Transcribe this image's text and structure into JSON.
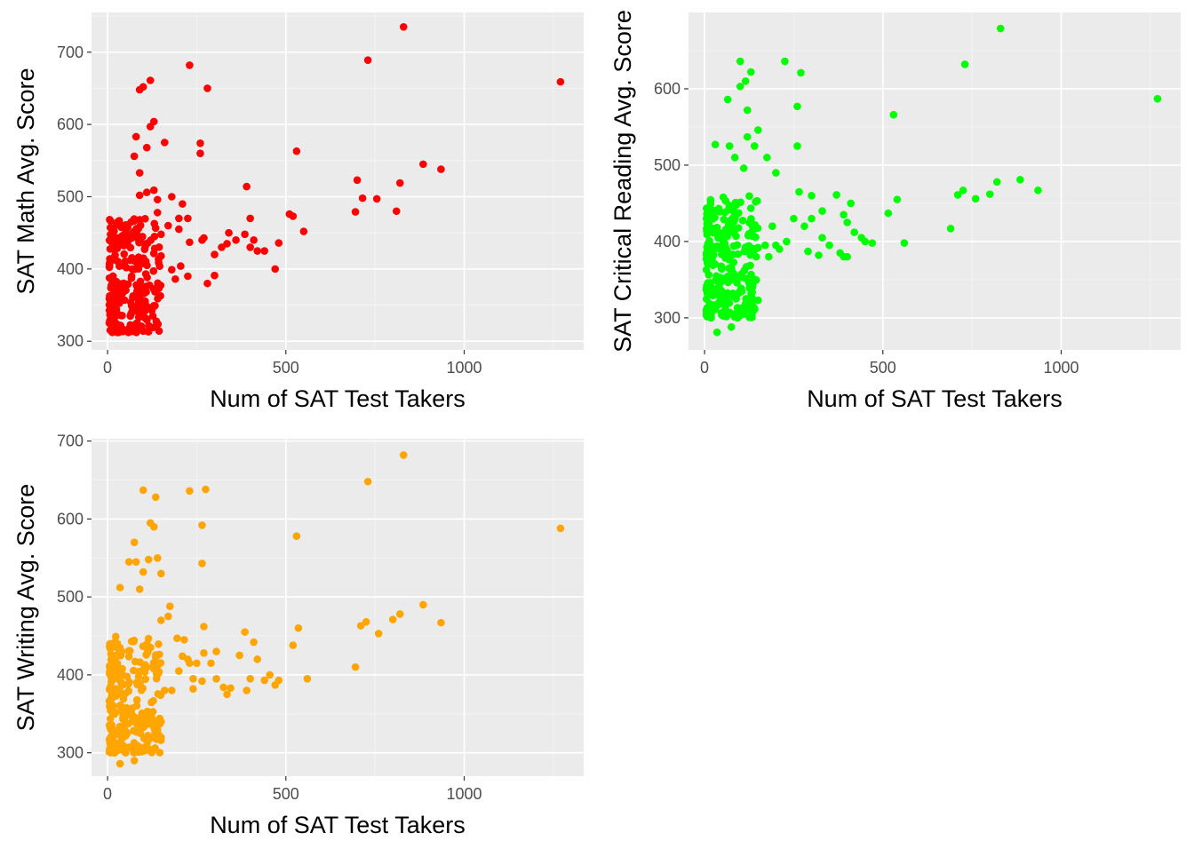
{
  "chart_data": [
    {
      "type": "scatter",
      "id": "math",
      "color": "#FF0000",
      "xlabel": "Num of SAT Test Takers",
      "ylabel": "SAT Math Avg. Score",
      "xlim": [
        -45,
        1335
      ],
      "ylim": [
        288,
        755
      ],
      "xticks": [
        0,
        500,
        1000
      ],
      "yticks": [
        300,
        400,
        500,
        600,
        700
      ],
      "grid": true,
      "cluster": {
        "xmin": 5,
        "xmax": 150,
        "ymin": 312,
        "ymax": 470,
        "count": 260
      },
      "points": [
        [
          1270,
          659
        ],
        [
          830,
          735
        ],
        [
          730,
          689
        ],
        [
          230,
          682
        ],
        [
          280,
          650
        ],
        [
          120,
          661
        ],
        [
          100,
          652
        ],
        [
          90,
          648
        ],
        [
          130,
          604
        ],
        [
          120,
          597
        ],
        [
          160,
          575
        ],
        [
          260,
          574
        ],
        [
          80,
          583
        ],
        [
          110,
          568
        ],
        [
          75,
          556
        ],
        [
          90,
          533
        ],
        [
          530,
          563
        ],
        [
          700,
          523
        ],
        [
          935,
          538
        ],
        [
          885,
          545
        ],
        [
          820,
          519
        ],
        [
          390,
          514
        ],
        [
          260,
          560
        ],
        [
          715,
          498
        ],
        [
          755,
          497
        ],
        [
          810,
          480
        ],
        [
          695,
          479
        ],
        [
          550,
          452
        ],
        [
          520,
          473
        ],
        [
          510,
          476
        ],
        [
          480,
          436
        ],
        [
          470,
          400
        ],
        [
          440,
          425
        ],
        [
          400,
          430
        ],
        [
          385,
          448
        ],
        [
          360,
          440
        ],
        [
          340,
          450
        ],
        [
          335,
          435
        ],
        [
          300,
          420
        ],
        [
          300,
          391
        ],
        [
          280,
          380
        ],
        [
          265,
          440
        ],
        [
          270,
          443
        ],
        [
          230,
          437
        ],
        [
          225,
          390
        ],
        [
          205,
          404
        ],
        [
          190,
          386
        ],
        [
          180,
          399
        ],
        [
          150,
          418
        ],
        [
          150,
          448
        ],
        [
          200,
          470
        ],
        [
          210,
          490
        ],
        [
          200,
          455
        ],
        [
          170,
          460
        ],
        [
          140,
          478
        ],
        [
          140,
          496
        ],
        [
          130,
          509
        ],
        [
          110,
          506
        ],
        [
          90,
          502
        ],
        [
          180,
          500
        ],
        [
          400,
          470
        ],
        [
          410,
          440
        ],
        [
          420,
          425
        ],
        [
          320,
          430
        ],
        [
          225,
          470
        ]
      ]
    },
    {
      "type": "scatter",
      "id": "reading",
      "color": "#00FF00",
      "xlabel": "Num of SAT Test Takers",
      "ylabel": "SAT Critical Reading Avg. Score",
      "xlim": [
        -45,
        1335
      ],
      "ylim": [
        258,
        700
      ],
      "xticks": [
        0,
        500,
        1000
      ],
      "yticks": [
        300,
        400,
        500,
        600
      ],
      "grid": true,
      "cluster": {
        "xmin": 5,
        "xmax": 150,
        "ymin": 300,
        "ymax": 460,
        "count": 260
      },
      "points": [
        [
          830,
          679
        ],
        [
          1270,
          587
        ],
        [
          730,
          632
        ],
        [
          225,
          636
        ],
        [
          270,
          621
        ],
        [
          100,
          636
        ],
        [
          130,
          622
        ],
        [
          115,
          610
        ],
        [
          100,
          603
        ],
        [
          260,
          577
        ],
        [
          530,
          566
        ],
        [
          120,
          572
        ],
        [
          65,
          586
        ],
        [
          150,
          546
        ],
        [
          140,
          525
        ],
        [
          260,
          525
        ],
        [
          30,
          527
        ],
        [
          70,
          525
        ],
        [
          85,
          510
        ],
        [
          110,
          496
        ],
        [
          120,
          537
        ],
        [
          175,
          510
        ],
        [
          200,
          490
        ],
        [
          265,
          465
        ],
        [
          370,
          461
        ],
        [
          390,
          435
        ],
        [
          400,
          425
        ],
        [
          410,
          450
        ],
        [
          330,
          440
        ],
        [
          300,
          430
        ],
        [
          290,
          387
        ],
        [
          320,
          382
        ],
        [
          350,
          395
        ],
        [
          380,
          385
        ],
        [
          390,
          380
        ],
        [
          400,
          380
        ],
        [
          420,
          412
        ],
        [
          440,
          405
        ],
        [
          470,
          398
        ],
        [
          450,
          400
        ],
        [
          515,
          437
        ],
        [
          540,
          455
        ],
        [
          560,
          398
        ],
        [
          690,
          417
        ],
        [
          710,
          461
        ],
        [
          725,
          467
        ],
        [
          760,
          456
        ],
        [
          800,
          462
        ],
        [
          820,
          478
        ],
        [
          885,
          481
        ],
        [
          935,
          467
        ],
        [
          280,
          420
        ],
        [
          250,
          430
        ],
        [
          230,
          400
        ],
        [
          210,
          390
        ],
        [
          200,
          395
        ],
        [
          180,
          380
        ],
        [
          170,
          395
        ],
        [
          190,
          420
        ],
        [
          150,
          392
        ],
        [
          145,
          380
        ],
        [
          135,
          343
        ],
        [
          150,
          323
        ],
        [
          110,
          305
        ],
        [
          75,
          288
        ],
        [
          35,
          281
        ],
        [
          20,
          315
        ],
        [
          300,
          460
        ],
        [
          330,
          405
        ]
      ]
    },
    {
      "type": "scatter",
      "id": "writing",
      "color": "#FFA500",
      "xlabel": "Num of SAT Test Takers",
      "ylabel": "SAT Writing Avg. Score",
      "xlim": [
        -45,
        1335
      ],
      "ylim": [
        270,
        703
      ],
      "xticks": [
        0,
        500,
        1000
      ],
      "yticks": [
        300,
        400,
        500,
        600,
        700
      ],
      "grid": true,
      "cluster": {
        "xmin": 5,
        "xmax": 150,
        "ymin": 300,
        "ymax": 450,
        "count": 260
      },
      "points": [
        [
          830,
          682
        ],
        [
          730,
          648
        ],
        [
          1270,
          588
        ],
        [
          230,
          636
        ],
        [
          275,
          638
        ],
        [
          100,
          637
        ],
        [
          135,
          628
        ],
        [
          265,
          592
        ],
        [
          120,
          595
        ],
        [
          130,
          590
        ],
        [
          530,
          578
        ],
        [
          75,
          570
        ],
        [
          80,
          545
        ],
        [
          100,
          532
        ],
        [
          140,
          550
        ],
        [
          115,
          548
        ],
        [
          265,
          543
        ],
        [
          150,
          530
        ],
        [
          60,
          545
        ],
        [
          35,
          512
        ],
        [
          90,
          510
        ],
        [
          175,
          488
        ],
        [
          170,
          475
        ],
        [
          150,
          470
        ],
        [
          270,
          462
        ],
        [
          535,
          460
        ],
        [
          520,
          438
        ],
        [
          885,
          490
        ],
        [
          935,
          467
        ],
        [
          820,
          478
        ],
        [
          800,
          471
        ],
        [
          725,
          468
        ],
        [
          710,
          463
        ],
        [
          760,
          453
        ],
        [
          695,
          410
        ],
        [
          560,
          395
        ],
        [
          480,
          393
        ],
        [
          470,
          387
        ],
        [
          455,
          400
        ],
        [
          440,
          393
        ],
        [
          420,
          420
        ],
        [
          410,
          442
        ],
        [
          400,
          395
        ],
        [
          390,
          380
        ],
        [
          385,
          455
        ],
        [
          370,
          425
        ],
        [
          345,
          383
        ],
        [
          335,
          375
        ],
        [
          325,
          384
        ],
        [
          305,
          395
        ],
        [
          290,
          415
        ],
        [
          270,
          428
        ],
        [
          250,
          415
        ],
        [
          240,
          382
        ],
        [
          225,
          420
        ],
        [
          210,
          424
        ],
        [
          200,
          405
        ],
        [
          195,
          447
        ],
        [
          180,
          380
        ],
        [
          160,
          380
        ],
        [
          150,
          340
        ],
        [
          140,
          330
        ],
        [
          150,
          320
        ],
        [
          110,
          310
        ],
        [
          75,
          290
        ],
        [
          35,
          286
        ],
        [
          20,
          300
        ],
        [
          305,
          430
        ],
        [
          265,
          392
        ],
        [
          230,
          415
        ],
        [
          215,
          445
        ],
        [
          240,
          395
        ]
      ]
    }
  ]
}
